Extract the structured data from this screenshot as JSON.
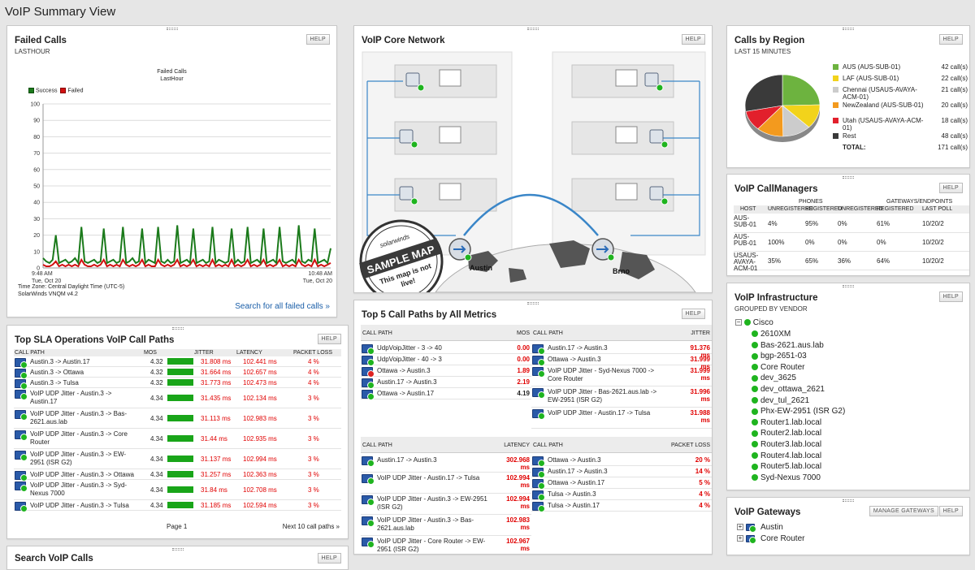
{
  "page": {
    "title": "VoIP Summary View"
  },
  "buttons": {
    "help": "HELP",
    "manage_gateways": "MANAGE GATEWAYS"
  },
  "failed_calls": {
    "title": "Failed Calls",
    "subtitle": "LASTHOUR",
    "chart_title_1": "Failed Calls",
    "chart_title_2": "LastHour",
    "footer_tz": "Time Zone: Central Daylight Time (UTC-5)",
    "footer_ver": "SolarWinds VNQM v4.2",
    "search_link": "Search for all failed calls »"
  },
  "chart_data": {
    "type": "line",
    "title": "Failed Calls",
    "subtitle": "LastHour",
    "xlabel": "",
    "ylabel": "",
    "ylim": [
      0,
      100
    ],
    "y_ticks": [
      0,
      10,
      20,
      30,
      40,
      50,
      60,
      70,
      80,
      90,
      100
    ],
    "x_start_label": [
      "9:48 AM",
      "Tue, Oct 20"
    ],
    "x_end_label": [
      "10:48 AM",
      "Tue, Oct 20"
    ],
    "legend": "top-left",
    "series": [
      {
        "name": "Success",
        "color": "#1b7a1b",
        "values": [
          6,
          4,
          3,
          5,
          20,
          3,
          4,
          5,
          3,
          4,
          6,
          3,
          25,
          4,
          3,
          4,
          5,
          3,
          4,
          24,
          3,
          4,
          5,
          3,
          4,
          25,
          3,
          4,
          6,
          3,
          4,
          24,
          3,
          5,
          4,
          3,
          25,
          4,
          3,
          5,
          3,
          4,
          26,
          3,
          4,
          5,
          3,
          24,
          3,
          4,
          5,
          3,
          4,
          25,
          3,
          5,
          4,
          3,
          4,
          24,
          3,
          5,
          3,
          4,
          25,
          3,
          4,
          5,
          3,
          24,
          3,
          4,
          5,
          3,
          25,
          4,
          3,
          4,
          5,
          3,
          26,
          4,
          3,
          5,
          4,
          24,
          3,
          4,
          5,
          3,
          12
        ]
      },
      {
        "name": "Failed",
        "color": "#d21010",
        "values": [
          2,
          1,
          1,
          2,
          4,
          1,
          2,
          1,
          2,
          1,
          2,
          1,
          5,
          2,
          1,
          1,
          2,
          1,
          2,
          5,
          1,
          2,
          1,
          2,
          1,
          5,
          2,
          1,
          2,
          1,
          2,
          5,
          1,
          2,
          1,
          1,
          5,
          2,
          1,
          2,
          1,
          2,
          5,
          1,
          2,
          1,
          2,
          5,
          1,
          2,
          1,
          2,
          1,
          5,
          1,
          2,
          1,
          2,
          1,
          5,
          1,
          2,
          1,
          2,
          5,
          1,
          2,
          1,
          2,
          5,
          1,
          2,
          1,
          2,
          5,
          1,
          2,
          1,
          2,
          1,
          5,
          2,
          1,
          2,
          1,
          5,
          1,
          2,
          1,
          2,
          3
        ]
      }
    ]
  },
  "core_network": {
    "title": "VoIP Core Network",
    "node_left": "Austin",
    "node_right": "Brno",
    "stamp_brand": "solarwinds",
    "stamp_title": "SAMPLE MAP",
    "stamp_note_1": "This map is not",
    "stamp_note_2": "live!"
  },
  "calls_by_region": {
    "title": "Calls by Region",
    "subtitle": "LAST 15 MINUTES",
    "rows": [
      {
        "label": "AUS (AUS-SUB-01)",
        "value": "42 call(s)",
        "color": "#6db33f",
        "n": 42
      },
      {
        "label": "LAF (AUS-SUB-01)",
        "value": "22 call(s)",
        "color": "#f2d31b",
        "n": 22
      },
      {
        "label": "Chennai (USAUS-AVAYA-ACM-01)",
        "value": "21 call(s)",
        "color": "#cccccc",
        "n": 21
      },
      {
        "label": "NewZealand (AUS-SUB-01)",
        "value": "20 call(s)",
        "color": "#f39a1e",
        "n": 20
      },
      {
        "label": "Utah (USAUS-AVAYA-ACM-01)",
        "value": "18 call(s)",
        "color": "#e2202c",
        "n": 18
      },
      {
        "label": "Rest",
        "value": "48 call(s)",
        "color": "#3a3a3a",
        "n": 48
      }
    ],
    "total_label": "TOTAL:",
    "total_value": "171 call(s)"
  },
  "callmanagers": {
    "title": "VoIP CallManagers",
    "group_phones": "PHONES",
    "group_gateways": "GATEWAYS/ENDPOINTS",
    "headers": [
      "HOST",
      "UNREGISTERED",
      "REGISTERED",
      "UNREGISTERED",
      "REGISTERED",
      "LAST POLL"
    ],
    "rows": [
      [
        "AUS-SUB-01",
        "4%",
        "95%",
        "0%",
        "61%",
        "10/20/2"
      ],
      [
        "AUS-PUB-01",
        "100%",
        "0%",
        "0%",
        "0%",
        "10/20/2"
      ],
      [
        "USAUS-AVAYA-ACM-01",
        "35%",
        "65%",
        "36%",
        "64%",
        "10/20/2"
      ]
    ]
  },
  "infrastructure": {
    "title": "VoIP Infrastructure",
    "subtitle": "GROUPED BY VENDOR",
    "vendor": "Cisco",
    "items": [
      "2610XM",
      "Bas-2621.aus.lab",
      "bgp-2651-03",
      "Core Router",
      "dev_3625",
      "dev_ottawa_2621",
      "dev_tul_2621",
      "Phx-EW-2951 (ISR G2)",
      "Router1.lab.local",
      "Router2.lab.local",
      "Router3.lab.local",
      "Router4.lab.local",
      "Router5.lab.local",
      "Syd-Nexus 7000"
    ]
  },
  "gateways": {
    "title": "VoIP Gateways",
    "items": [
      "Austin",
      "Core Router"
    ]
  },
  "sla": {
    "title": "Top SLA Operations VoIP Call Paths",
    "headers": [
      "CALL PATH",
      "MOS",
      "JITTER",
      "LATENCY",
      "PACKET LOSS"
    ],
    "rows": [
      {
        "path": "Austin.3 -> Austin.17",
        "mos": "4.32",
        "jitter": "31.808 ms",
        "latency": "102.441 ms",
        "loss": "4 %",
        "bar": 0.8
      },
      {
        "path": "Austin.3 -> Ottawa",
        "mos": "4.32",
        "jitter": "31.664 ms",
        "latency": "102.657 ms",
        "loss": "4 %",
        "bar": 0.8
      },
      {
        "path": "Austin.3 -> Tulsa",
        "mos": "4.32",
        "jitter": "31.773 ms",
        "latency": "102.473 ms",
        "loss": "4 %",
        "bar": 0.8
      },
      {
        "path": "VoIP UDP Jitter - Austin.3 -> Austin.17",
        "mos": "4.34",
        "jitter": "31.435 ms",
        "latency": "102.134 ms",
        "loss": "3 %",
        "bar": 0.8
      },
      {
        "path": "VoIP UDP Jitter - Austin.3 -> Bas-2621.aus.lab",
        "mos": "4.34",
        "jitter": "31.113 ms",
        "latency": "102.983 ms",
        "loss": "3 %",
        "bar": 0.8
      },
      {
        "path": "VoIP UDP Jitter - Austin.3 -> Core Router",
        "mos": "4.34",
        "jitter": "31.44 ms",
        "latency": "102.935 ms",
        "loss": "3 %",
        "bar": 0.8
      },
      {
        "path": "VoIP UDP Jitter - Austin.3 -> EW-2951 (ISR G2)",
        "mos": "4.34",
        "jitter": "31.137 ms",
        "latency": "102.994 ms",
        "loss": "3 %",
        "bar": 0.8
      },
      {
        "path": "VoIP UDP Jitter - Austin.3 -> Ottawa",
        "mos": "4.34",
        "jitter": "31.257 ms",
        "latency": "102.363 ms",
        "loss": "3 %",
        "bar": 0.8
      },
      {
        "path": "VoIP UDP Jitter - Austin.3 -> Syd-Nexus 7000",
        "mos": "4.34",
        "jitter": "31.84 ms",
        "latency": "102.708 ms",
        "loss": "3 %",
        "bar": 0.8
      },
      {
        "path": "VoIP UDP Jitter - Austin.3 -> Tulsa",
        "mos": "4.34",
        "jitter": "31.185 ms",
        "latency": "102.594 ms",
        "loss": "3 %",
        "bar": 0.8
      }
    ],
    "page_label": "Page 1",
    "next_label": "Next 10 call paths »"
  },
  "search_calls": {
    "title": "Search VoIP Calls"
  },
  "top5": {
    "title": "Top 5 Call Paths by All Metrics",
    "mos": {
      "h1": "CALL PATH",
      "h2": "MOS",
      "rows": [
        {
          "path": "UdpVoipJitter - 3 -> 40",
          "val": "0.00",
          "red": true,
          "bad": false
        },
        {
          "path": "UdpVoipJitter - 40 -> 3",
          "val": "0.00",
          "red": true,
          "bad": false
        },
        {
          "path": "Ottawa -> Austin.3",
          "val": "1.89",
          "red": true,
          "bad": true
        },
        {
          "path": "Austin.17 -> Austin.3",
          "val": "2.19",
          "red": true,
          "bad": false
        },
        {
          "path": "Ottawa -> Austin.17",
          "val": "4.19",
          "red": false,
          "bad": false
        }
      ]
    },
    "jitter": {
      "h1": "CALL PATH",
      "h2": "JITTER",
      "rows": [
        {
          "path": "Austin.17 -> Austin.3",
          "val": "91.376 ms"
        },
        {
          "path": "Ottawa -> Austin.3",
          "val": "31.999 ms"
        },
        {
          "path": "VoIP UDP Jitter - Syd-Nexus 7000 -> Core Router",
          "val": "31.999 ms"
        },
        {
          "path": "VoIP UDP Jitter - Bas-2621.aus.lab -> EW-2951 (ISR G2)",
          "val": "31.996 ms"
        },
        {
          "path": "VoIP UDP Jitter - Austin.17 -> Tulsa",
          "val": "31.988 ms"
        }
      ]
    },
    "latency": {
      "h1": "CALL PATH",
      "h2": "LATENCY",
      "rows": [
        {
          "path": "Austin.17 -> Austin.3",
          "val": "302.968 ms"
        },
        {
          "path": "VoIP UDP Jitter - Austin.17 -> Tulsa",
          "val": "102.994 ms"
        },
        {
          "path": "VoIP UDP Jitter - Austin.3 -> EW-2951 (ISR G2)",
          "val": "102.994 ms"
        },
        {
          "path": "VoIP UDP Jitter - Austin.3 -> Bas-2621.aus.lab",
          "val": "102.983 ms"
        },
        {
          "path": "VoIP UDP Jitter - Core Router -> EW-2951 (ISR G2)",
          "val": "102.967 ms"
        }
      ]
    },
    "loss": {
      "h1": "CALL PATH",
      "h2": "PACKET LOSS",
      "rows": [
        {
          "path": "Ottawa -> Austin.3",
          "val": "20 %"
        },
        {
          "path": "Austin.17 -> Austin.3",
          "val": "14 %"
        },
        {
          "path": "Ottawa -> Austin.17",
          "val": "5 %"
        },
        {
          "path": "Tulsa -> Austin.3",
          "val": "4 %"
        },
        {
          "path": "Tulsa -> Austin.17",
          "val": "4 %"
        }
      ]
    }
  }
}
